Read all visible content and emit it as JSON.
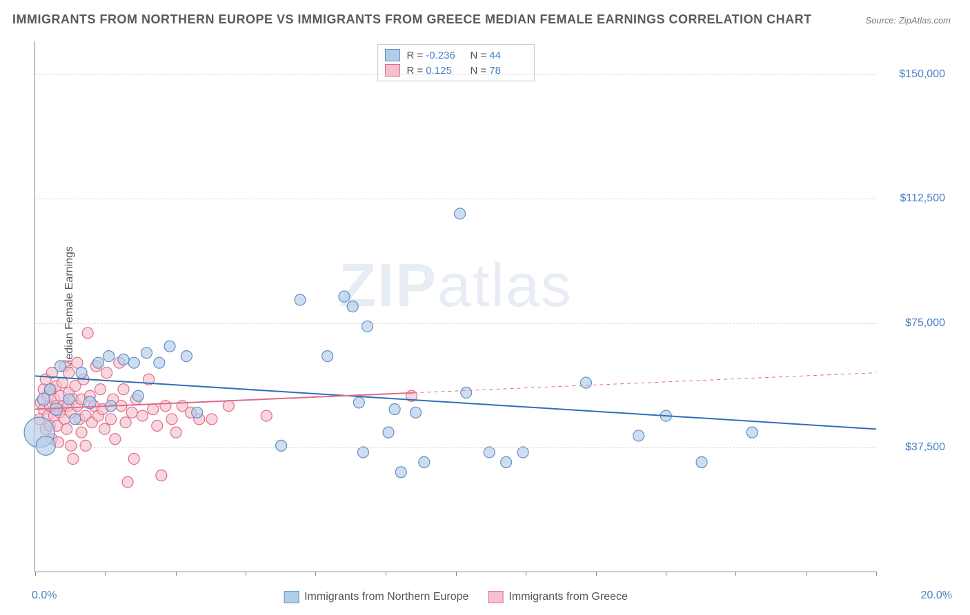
{
  "title": "IMMIGRANTS FROM NORTHERN EUROPE VS IMMIGRANTS FROM GREECE MEDIAN FEMALE EARNINGS CORRELATION CHART",
  "source": "Source: ZipAtlas.com",
  "y_axis_label": "Median Female Earnings",
  "watermark_bold": "ZIP",
  "watermark_rest": "atlas",
  "x_axis": {
    "min_label": "0.0%",
    "max_label": "20.0%",
    "min": 0.0,
    "max": 20.0,
    "tick_positions_pct": [
      0,
      8.3,
      16.7,
      25,
      33.3,
      41.7,
      50,
      58.3,
      66.7,
      75,
      83.3,
      91.7,
      100
    ]
  },
  "y_axis": {
    "min": 0,
    "max": 160000,
    "gridlines": [
      {
        "value": 37500,
        "label": "$37,500"
      },
      {
        "value": 75000,
        "label": "$75,000"
      },
      {
        "value": 112500,
        "label": "$112,500"
      },
      {
        "value": 150000,
        "label": "$150,000"
      }
    ]
  },
  "series": [
    {
      "id": "northern_europe",
      "label": "Immigrants from Northern Europe",
      "fill": "#b3cde8",
      "stroke": "#5b8fc7",
      "line_color": "#2f6fb8",
      "line_width": 2,
      "R": "-0.236",
      "N": "44",
      "trend": {
        "x1_pct": 0.0,
        "y1": 59000,
        "x2_pct": 20.0,
        "y2": 43000,
        "dashed": false
      },
      "points": [
        {
          "x": 0.1,
          "y": 42000,
          "r": 22
        },
        {
          "x": 0.25,
          "y": 38000,
          "r": 14
        },
        {
          "x": 0.2,
          "y": 52000,
          "r": 9
        },
        {
          "x": 0.35,
          "y": 55000,
          "r": 8
        },
        {
          "x": 0.5,
          "y": 49000,
          "r": 9
        },
        {
          "x": 0.6,
          "y": 62000,
          "r": 8
        },
        {
          "x": 0.8,
          "y": 52000,
          "r": 8
        },
        {
          "x": 0.95,
          "y": 46000,
          "r": 8
        },
        {
          "x": 1.1,
          "y": 60000,
          "r": 8
        },
        {
          "x": 1.3,
          "y": 51000,
          "r": 9
        },
        {
          "x": 1.5,
          "y": 63000,
          "r": 8
        },
        {
          "x": 1.75,
          "y": 65000,
          "r": 8
        },
        {
          "x": 1.8,
          "y": 50000,
          "r": 8
        },
        {
          "x": 2.1,
          "y": 64000,
          "r": 8
        },
        {
          "x": 2.35,
          "y": 63000,
          "r": 8
        },
        {
          "x": 2.45,
          "y": 53000,
          "r": 8
        },
        {
          "x": 2.65,
          "y": 66000,
          "r": 8
        },
        {
          "x": 2.95,
          "y": 63000,
          "r": 8
        },
        {
          "x": 3.2,
          "y": 68000,
          "r": 8
        },
        {
          "x": 3.6,
          "y": 65000,
          "r": 8
        },
        {
          "x": 3.85,
          "y": 48000,
          "r": 8
        },
        {
          "x": 5.85,
          "y": 38000,
          "r": 8
        },
        {
          "x": 6.3,
          "y": 82000,
          "r": 8
        },
        {
          "x": 6.95,
          "y": 65000,
          "r": 8
        },
        {
          "x": 7.35,
          "y": 83000,
          "r": 8
        },
        {
          "x": 7.55,
          "y": 80000,
          "r": 8
        },
        {
          "x": 7.7,
          "y": 51000,
          "r": 8
        },
        {
          "x": 7.8,
          "y": 36000,
          "r": 8
        },
        {
          "x": 7.9,
          "y": 74000,
          "r": 8
        },
        {
          "x": 8.4,
          "y": 42000,
          "r": 8
        },
        {
          "x": 8.55,
          "y": 49000,
          "r": 8
        },
        {
          "x": 8.7,
          "y": 30000,
          "r": 8
        },
        {
          "x": 9.05,
          "y": 48000,
          "r": 8
        },
        {
          "x": 9.25,
          "y": 33000,
          "r": 8
        },
        {
          "x": 10.1,
          "y": 108000,
          "r": 8
        },
        {
          "x": 10.25,
          "y": 54000,
          "r": 8
        },
        {
          "x": 10.8,
          "y": 36000,
          "r": 8
        },
        {
          "x": 11.2,
          "y": 33000,
          "r": 8
        },
        {
          "x": 11.6,
          "y": 36000,
          "r": 8
        },
        {
          "x": 13.1,
          "y": 57000,
          "r": 8
        },
        {
          "x": 14.35,
          "y": 41000,
          "r": 8
        },
        {
          "x": 15.0,
          "y": 47000,
          "r": 8
        },
        {
          "x": 15.85,
          "y": 33000,
          "r": 8
        },
        {
          "x": 17.05,
          "y": 42000,
          "r": 8
        }
      ]
    },
    {
      "id": "greece",
      "label": "Immigrants from Greece",
      "fill": "#f5c0cc",
      "stroke": "#e06c8a",
      "line_color": "#e06c8a",
      "line_width": 2,
      "R": "0.125",
      "N": "78",
      "trend": {
        "x1_pct": 0.0,
        "y1": 49000,
        "x2_pct": 20.0,
        "y2": 60000,
        "dashed_from_pct": 9.0
      },
      "points": [
        {
          "x": 0.1,
          "y": 46000,
          "r": 8
        },
        {
          "x": 0.15,
          "y": 51000,
          "r": 9
        },
        {
          "x": 0.2,
          "y": 49000,
          "r": 8
        },
        {
          "x": 0.2,
          "y": 55000,
          "r": 8
        },
        {
          "x": 0.25,
          "y": 43000,
          "r": 8
        },
        {
          "x": 0.25,
          "y": 58000,
          "r": 8
        },
        {
          "x": 0.3,
          "y": 53000,
          "r": 8
        },
        {
          "x": 0.3,
          "y": 47000,
          "r": 8
        },
        {
          "x": 0.35,
          "y": 50000,
          "r": 8
        },
        {
          "x": 0.35,
          "y": 44000,
          "r": 8
        },
        {
          "x": 0.38,
          "y": 55000,
          "r": 8
        },
        {
          "x": 0.4,
          "y": 40000,
          "r": 8
        },
        {
          "x": 0.4,
          "y": 60000,
          "r": 8
        },
        {
          "x": 0.45,
          "y": 47000,
          "r": 8
        },
        {
          "x": 0.45,
          "y": 52000,
          "r": 8
        },
        {
          "x": 0.5,
          "y": 56000,
          "r": 8
        },
        {
          "x": 0.5,
          "y": 50000,
          "r": 8
        },
        {
          "x": 0.52,
          "y": 44000,
          "r": 8
        },
        {
          "x": 0.55,
          "y": 39000,
          "r": 8
        },
        {
          "x": 0.58,
          "y": 48000,
          "r": 8
        },
        {
          "x": 0.6,
          "y": 53000,
          "r": 8
        },
        {
          "x": 0.65,
          "y": 50000,
          "r": 8
        },
        {
          "x": 0.65,
          "y": 57000,
          "r": 8
        },
        {
          "x": 0.7,
          "y": 46000,
          "r": 8
        },
        {
          "x": 0.7,
          "y": 62000,
          "r": 8
        },
        {
          "x": 0.75,
          "y": 43000,
          "r": 8
        },
        {
          "x": 0.78,
          "y": 50000,
          "r": 8
        },
        {
          "x": 0.8,
          "y": 60000,
          "r": 8
        },
        {
          "x": 0.8,
          "y": 54000,
          "r": 8
        },
        {
          "x": 0.85,
          "y": 48000,
          "r": 8
        },
        {
          "x": 0.85,
          "y": 38000,
          "r": 8
        },
        {
          "x": 0.9,
          "y": 52000,
          "r": 8
        },
        {
          "x": 0.9,
          "y": 34000,
          "r": 8
        },
        {
          "x": 0.95,
          "y": 56000,
          "r": 8
        },
        {
          "x": 1.0,
          "y": 50000,
          "r": 8
        },
        {
          "x": 1.0,
          "y": 63000,
          "r": 8
        },
        {
          "x": 1.05,
          "y": 46000,
          "r": 8
        },
        {
          "x": 1.1,
          "y": 42000,
          "r": 8
        },
        {
          "x": 1.1,
          "y": 52000,
          "r": 8
        },
        {
          "x": 1.15,
          "y": 58000,
          "r": 8
        },
        {
          "x": 1.2,
          "y": 47000,
          "r": 8
        },
        {
          "x": 1.2,
          "y": 38000,
          "r": 8
        },
        {
          "x": 1.25,
          "y": 72000,
          "r": 8
        },
        {
          "x": 1.3,
          "y": 53000,
          "r": 8
        },
        {
          "x": 1.35,
          "y": 45000,
          "r": 8
        },
        {
          "x": 1.4,
          "y": 50000,
          "r": 8
        },
        {
          "x": 1.45,
          "y": 62000,
          "r": 8
        },
        {
          "x": 1.5,
          "y": 47000,
          "r": 8
        },
        {
          "x": 1.55,
          "y": 55000,
          "r": 8
        },
        {
          "x": 1.6,
          "y": 49000,
          "r": 8
        },
        {
          "x": 1.65,
          "y": 43000,
          "r": 8
        },
        {
          "x": 1.7,
          "y": 60000,
          "r": 8
        },
        {
          "x": 1.8,
          "y": 46000,
          "r": 8
        },
        {
          "x": 1.85,
          "y": 52000,
          "r": 8
        },
        {
          "x": 1.9,
          "y": 40000,
          "r": 8
        },
        {
          "x": 2.0,
          "y": 63000,
          "r": 8
        },
        {
          "x": 2.05,
          "y": 50000,
          "r": 8
        },
        {
          "x": 2.1,
          "y": 55000,
          "r": 8
        },
        {
          "x": 2.15,
          "y": 45000,
          "r": 8
        },
        {
          "x": 2.2,
          "y": 27000,
          "r": 8
        },
        {
          "x": 2.3,
          "y": 48000,
          "r": 8
        },
        {
          "x": 2.35,
          "y": 34000,
          "r": 8
        },
        {
          "x": 2.4,
          "y": 52000,
          "r": 8
        },
        {
          "x": 2.55,
          "y": 47000,
          "r": 8
        },
        {
          "x": 2.7,
          "y": 58000,
          "r": 8
        },
        {
          "x": 2.8,
          "y": 49000,
          "r": 8
        },
        {
          "x": 2.9,
          "y": 44000,
          "r": 8
        },
        {
          "x": 3.0,
          "y": 29000,
          "r": 8
        },
        {
          "x": 3.1,
          "y": 50000,
          "r": 8
        },
        {
          "x": 3.25,
          "y": 46000,
          "r": 8
        },
        {
          "x": 3.35,
          "y": 42000,
          "r": 8
        },
        {
          "x": 3.5,
          "y": 50000,
          "r": 8
        },
        {
          "x": 3.7,
          "y": 48000,
          "r": 8
        },
        {
          "x": 3.9,
          "y": 46000,
          "r": 8
        },
        {
          "x": 4.2,
          "y": 46000,
          "r": 8
        },
        {
          "x": 4.6,
          "y": 50000,
          "r": 8
        },
        {
          "x": 5.5,
          "y": 47000,
          "r": 8
        },
        {
          "x": 8.95,
          "y": 53000,
          "r": 8
        }
      ]
    }
  ],
  "colors": {
    "title_text": "#5a5a5a",
    "axis_value_text": "#4a7ec9",
    "grid_dash": "#d8d8d8",
    "background": "#ffffff"
  }
}
